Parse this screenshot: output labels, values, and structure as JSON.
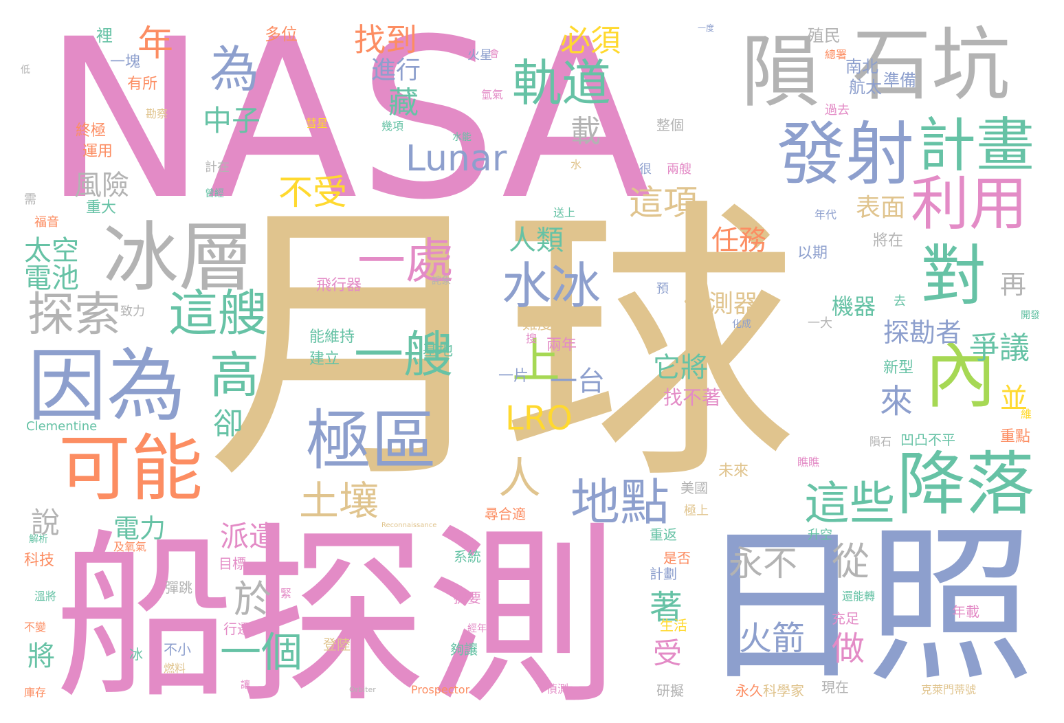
{
  "palette": {
    "pink": "#e38bc6",
    "tan": "#e0c48e",
    "blue": "#8d9fcd",
    "gray": "#b3b3b3",
    "green": "#66c2a5",
    "orange": "#fc8d62",
    "lime": "#a6d854",
    "yellow": "#ffd92f"
  },
  "words": [
    {
      "text": "NASA",
      "color": "pink"
    },
    {
      "text": "月球",
      "color": "tan"
    },
    {
      "text": "探測",
      "color": "pink"
    },
    {
      "text": "船",
      "color": "pink"
    },
    {
      "text": "日照",
      "color": "blue"
    },
    {
      "text": "冰層",
      "color": "gray"
    },
    {
      "text": "因為",
      "color": "blue"
    },
    {
      "text": "隕",
      "color": "gray"
    },
    {
      "text": "石坑",
      "color": "gray"
    },
    {
      "text": "發射",
      "color": "blue"
    },
    {
      "text": "計畫",
      "color": "green"
    },
    {
      "text": "利用",
      "color": "pink"
    },
    {
      "text": "對",
      "color": "green"
    },
    {
      "text": "內",
      "color": "lime"
    },
    {
      "text": "降落",
      "color": "green"
    },
    {
      "text": "可能",
      "color": "orange"
    },
    {
      "text": "極區",
      "color": "blue"
    },
    {
      "text": "軌道",
      "color": "green"
    },
    {
      "text": "為",
      "color": "blue"
    },
    {
      "text": "水冰",
      "color": "blue"
    },
    {
      "text": "這艘",
      "color": "green"
    },
    {
      "text": "高",
      "color": "green"
    },
    {
      "text": "一處",
      "color": "pink"
    },
    {
      "text": "一艘",
      "color": "green"
    },
    {
      "text": "上",
      "color": "lime"
    },
    {
      "text": "探索",
      "color": "gray"
    },
    {
      "text": "地點",
      "color": "blue"
    },
    {
      "text": "這些",
      "color": "green"
    },
    {
      "text": "Lunar",
      "color": "blue"
    },
    {
      "text": "LRO",
      "color": "yellow"
    },
    {
      "text": "人",
      "color": "tan"
    },
    {
      "text": "土壤",
      "color": "tan"
    },
    {
      "text": "一個",
      "color": "green"
    },
    {
      "text": "於",
      "color": "gray"
    },
    {
      "text": "永不",
      "color": "gray"
    },
    {
      "text": "從",
      "color": "gray"
    },
    {
      "text": "火箭",
      "color": "blue"
    },
    {
      "text": "不受",
      "color": "yellow"
    },
    {
      "text": "這項",
      "color": "tan"
    },
    {
      "text": "年",
      "color": "orange"
    },
    {
      "text": "找到",
      "color": "orange"
    },
    {
      "text": "必須",
      "color": "yellow"
    },
    {
      "text": "中子",
      "color": "green"
    },
    {
      "text": "藏",
      "color": "green"
    },
    {
      "text": "載",
      "color": "gray"
    },
    {
      "text": "風險",
      "color": "gray"
    },
    {
      "text": "太空",
      "color": "green"
    },
    {
      "text": "電池",
      "color": "green"
    },
    {
      "text": "人類",
      "color": "green"
    },
    {
      "text": "任務",
      "color": "orange"
    },
    {
      "text": "爭議",
      "color": "green"
    },
    {
      "text": "來",
      "color": "blue"
    },
    {
      "text": "探勘者",
      "color": "blue"
    },
    {
      "text": "偵測器",
      "color": "tan"
    },
    {
      "text": "它將",
      "color": "green"
    },
    {
      "text": "一台",
      "color": "blue"
    },
    {
      "text": "派遣",
      "color": "pink"
    },
    {
      "text": "進行",
      "color": "blue"
    },
    {
      "text": "表面",
      "color": "tan"
    },
    {
      "text": "卻",
      "color": "green"
    },
    {
      "text": "說",
      "color": "gray"
    },
    {
      "text": "電力",
      "color": "green"
    },
    {
      "text": "著",
      "color": "green"
    },
    {
      "text": "做",
      "color": "pink"
    },
    {
      "text": "受",
      "color": "pink"
    },
    {
      "text": "再",
      "color": "gray"
    },
    {
      "text": "並",
      "color": "yellow"
    },
    {
      "text": "機器",
      "color": "green"
    },
    {
      "text": "將",
      "color": "green"
    },
    {
      "text": "找不著",
      "color": "pink"
    },
    {
      "text": "裡",
      "color": "green"
    },
    {
      "text": "多位",
      "color": "orange"
    },
    {
      "text": "殖民",
      "color": "gray"
    },
    {
      "text": "南北",
      "color": "blue"
    },
    {
      "text": "航太",
      "color": "blue"
    },
    {
      "text": "準備",
      "color": "blue"
    },
    {
      "text": "一塊",
      "color": "blue"
    },
    {
      "text": "有所",
      "color": "orange"
    },
    {
      "text": "終極",
      "color": "orange"
    },
    {
      "text": "運用",
      "color": "orange"
    },
    {
      "text": "重大",
      "color": "green"
    },
    {
      "text": "以期",
      "color": "blue"
    },
    {
      "text": "將在",
      "color": "gray"
    },
    {
      "text": "飛行器",
      "color": "pink"
    },
    {
      "text": "能維持",
      "color": "green"
    },
    {
      "text": "建立",
      "color": "green"
    },
    {
      "text": "基地",
      "color": "green"
    },
    {
      "text": "難度",
      "color": "tan"
    },
    {
      "text": "兩年",
      "color": "pink"
    },
    {
      "text": "一片",
      "color": "blue"
    },
    {
      "text": "新型",
      "color": "green"
    },
    {
      "text": "凹凸不平",
      "color": "green"
    },
    {
      "text": "重點",
      "color": "orange"
    },
    {
      "text": "隕石",
      "color": "gray"
    },
    {
      "text": "Clementine",
      "color": "green"
    },
    {
      "text": "Prospector",
      "color": "orange"
    },
    {
      "text": "Reconnaissance",
      "color": "tan"
    },
    {
      "text": "Orbiter",
      "color": "gray"
    },
    {
      "text": "未來",
      "color": "tan"
    },
    {
      "text": "美國",
      "color": "gray"
    },
    {
      "text": "極上",
      "color": "tan"
    },
    {
      "text": "尋合適",
      "color": "orange"
    },
    {
      "text": "重返",
      "color": "green"
    },
    {
      "text": "升空",
      "color": "green"
    },
    {
      "text": "科技",
      "color": "orange"
    },
    {
      "text": "目標",
      "color": "pink"
    },
    {
      "text": "系統",
      "color": "green"
    },
    {
      "text": "是否",
      "color": "orange"
    },
    {
      "text": "計劃",
      "color": "blue"
    },
    {
      "text": "彈跳",
      "color": "gray"
    },
    {
      "text": "提要",
      "color": "pink"
    },
    {
      "text": "充足",
      "color": "pink"
    },
    {
      "text": "年載",
      "color": "pink"
    },
    {
      "text": "生活",
      "color": "yellow"
    },
    {
      "text": "行遷",
      "color": "pink"
    },
    {
      "text": "不小",
      "color": "blue"
    },
    {
      "text": "燃料",
      "color": "tan"
    },
    {
      "text": "冰",
      "color": "green"
    },
    {
      "text": "登陸",
      "color": "tan"
    },
    {
      "text": "夠讓",
      "color": "green"
    },
    {
      "text": "永久",
      "color": "orange"
    },
    {
      "text": "科學家",
      "color": "tan"
    },
    {
      "text": "現在",
      "color": "gray"
    },
    {
      "text": "研擬",
      "color": "gray"
    },
    {
      "text": "偵測",
      "color": "pink"
    },
    {
      "text": "克萊門蒂號",
      "color": "tan"
    },
    {
      "text": "不變",
      "color": "orange"
    },
    {
      "text": "庫存",
      "color": "orange"
    },
    {
      "text": "過去",
      "color": "pink"
    },
    {
      "text": "總署",
      "color": "orange"
    },
    {
      "text": "火星",
      "color": "blue"
    },
    {
      "text": "氫氣",
      "color": "pink"
    },
    {
      "text": "幾項",
      "color": "green"
    },
    {
      "text": "水能",
      "color": "green"
    },
    {
      "text": "整個",
      "color": "gray"
    },
    {
      "text": "很",
      "color": "blue"
    },
    {
      "text": "兩艘",
      "color": "pink"
    },
    {
      "text": "水",
      "color": "tan"
    },
    {
      "text": "計在",
      "color": "gray"
    },
    {
      "text": "送上",
      "color": "green"
    },
    {
      "text": "年代",
      "color": "blue"
    },
    {
      "text": "預",
      "color": "blue"
    },
    {
      "text": "去",
      "color": "green"
    },
    {
      "text": "一大",
      "color": "gray"
    },
    {
      "text": "致力",
      "color": "gray"
    },
    {
      "text": "需",
      "color": "gray"
    },
    {
      "text": "福音",
      "color": "orange"
    },
    {
      "text": "低",
      "color": "gray"
    },
    {
      "text": "會",
      "color": "pink"
    },
    {
      "text": "勘察",
      "color": "tan"
    },
    {
      "text": "一度",
      "color": "blue"
    },
    {
      "text": "曾經",
      "color": "green"
    },
    {
      "text": "搜",
      "color": "pink"
    },
    {
      "text": "化成",
      "color": "blue"
    },
    {
      "text": "開發",
      "color": "green"
    },
    {
      "text": "維",
      "color": "yellow"
    },
    {
      "text": "解析",
      "color": "green"
    },
    {
      "text": "及氧氣",
      "color": "orange"
    },
    {
      "text": "還能轉",
      "color": "green"
    },
    {
      "text": "溫將",
      "color": "green"
    },
    {
      "text": "緊",
      "color": "pink"
    },
    {
      "text": "經年",
      "color": "pink"
    },
    {
      "text": "讓",
      "color": "pink"
    },
    {
      "text": "瞧瞧",
      "color": "pink"
    },
    {
      "text": "詫象",
      "color": "gray"
    },
    {
      "text": "彗星",
      "color": "yellow"
    }
  ]
}
